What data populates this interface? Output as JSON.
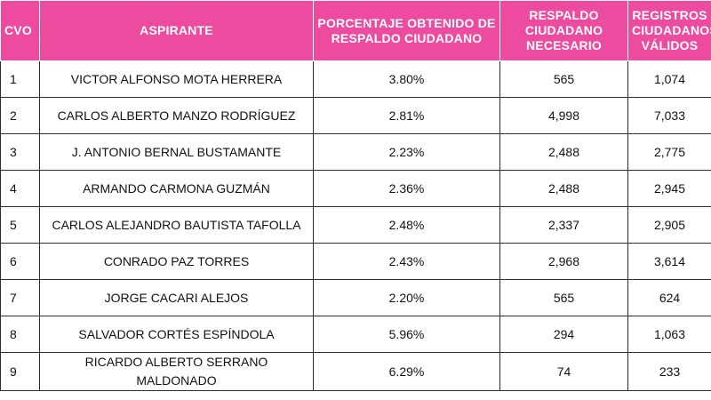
{
  "headers": {
    "cvo": "CVO",
    "aspirante": "ASPIRANTE",
    "porcentaje": "PORCENTAJE OBTENIDO DE RESPALDO CIUDADANO",
    "respaldo": "RESPALDO CIUDADANO NECESARIO",
    "registros": "REGISTROS CIUDADANOS VÁLIDOS"
  },
  "rows": [
    {
      "cvo": "1",
      "aspirante": "VICTOR ALFONSO MOTA HERRERA",
      "porcentaje": "3.80%",
      "respaldo": "565",
      "registros": "1,074"
    },
    {
      "cvo": "2",
      "aspirante": "CARLOS ALBERTO MANZO RODRÍGUEZ",
      "porcentaje": "2.81%",
      "respaldo": "4,998",
      "registros": "7,033"
    },
    {
      "cvo": "3",
      "aspirante": "J. ANTONIO BERNAL BUSTAMANTE",
      "porcentaje": "2.23%",
      "respaldo": "2,488",
      "registros": "2,775"
    },
    {
      "cvo": "4",
      "aspirante": "ARMANDO CARMONA GUZMÁN",
      "porcentaje": "2.36%",
      "respaldo": "2,488",
      "registros": "2,945"
    },
    {
      "cvo": "5",
      "aspirante": "CARLOS ALEJANDRO BAUTISTA TAFOLLA",
      "porcentaje": "2.48%",
      "respaldo": "2,337",
      "registros": "2,905"
    },
    {
      "cvo": "6",
      "aspirante": "CONRADO PAZ TORRES",
      "porcentaje": "2.43%",
      "respaldo": "2,968",
      "registros": "3,614"
    },
    {
      "cvo": "7",
      "aspirante": "JORGE CACARI ALEJOS",
      "porcentaje": "2.20%",
      "respaldo": "565",
      "registros": "624"
    },
    {
      "cvo": "8",
      "aspirante": "SALVADOR CORTÉS ESPÍNDOLA",
      "porcentaje": "5.96%",
      "respaldo": "294",
      "registros": "1,063"
    },
    {
      "cvo": "9",
      "aspirante": "RICARDO ALBERTO SERRANO MALDONADO",
      "porcentaje": "6.29%",
      "respaldo": "74",
      "registros": "233"
    }
  ]
}
